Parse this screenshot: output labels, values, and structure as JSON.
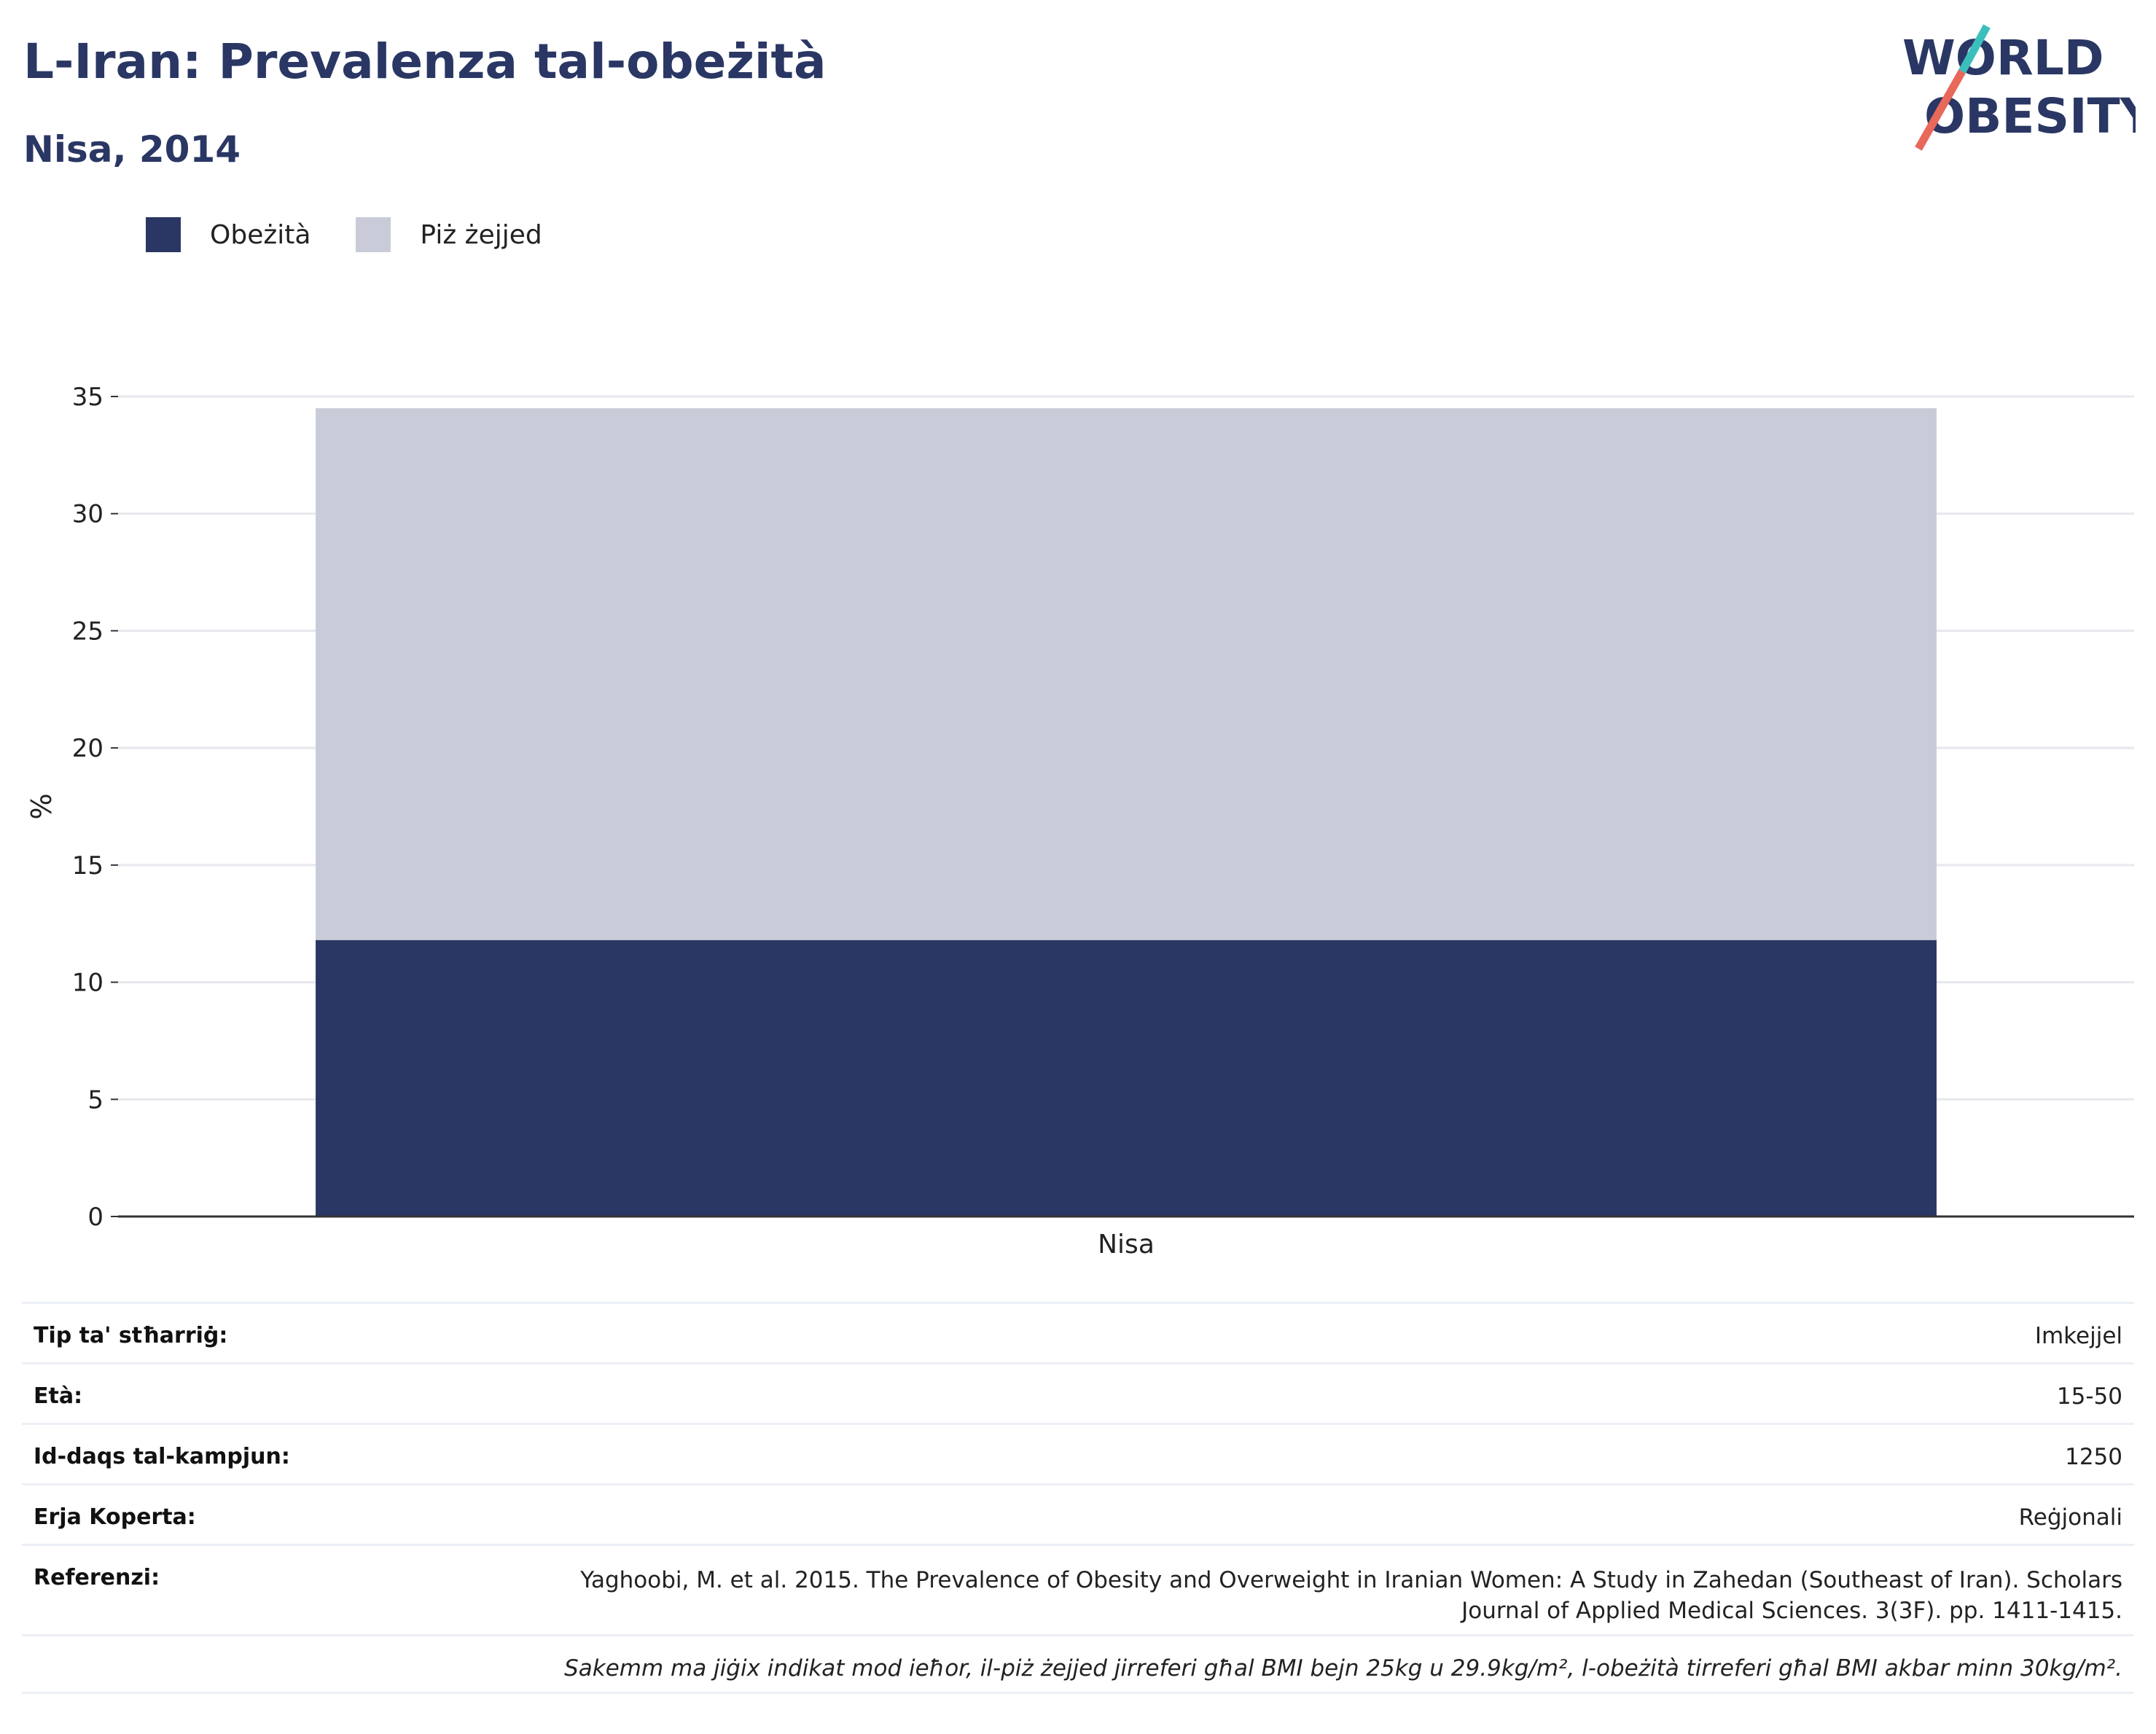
{
  "header": {
    "title": "L-Iran: Prevalenza tal-obeżità",
    "subtitle": "Nisa, 2014"
  },
  "logo": {
    "line1": "WORLD",
    "line2": "OBESITY",
    "colors": {
      "text": "#2a3764",
      "slash_top": "#3bbfbd",
      "slash_bottom": "#e8685a"
    }
  },
  "legend": {
    "items": [
      {
        "label": "Obeżità",
        "color": "#2a3764"
      },
      {
        "label": "Piż żejjed",
        "color": "#c9ccd8"
      }
    ]
  },
  "chart_data": {
    "type": "bar",
    "stacked": true,
    "categories": [
      "Nisa"
    ],
    "series": [
      {
        "name": "Obeżità",
        "values": [
          11.8
        ],
        "color": "#2a3764"
      },
      {
        "name": "Piż żejjed",
        "values": [
          22.7
        ],
        "color": "#c9ccd8"
      }
    ],
    "title": "L-Iran: Prevalenza tal-obeżità",
    "subtitle": "Nisa, 2014",
    "xlabel": "",
    "ylabel": "%",
    "ylim": [
      0,
      35
    ],
    "yticks": [
      0,
      5,
      10,
      15,
      20,
      25,
      30,
      35
    ],
    "grid": true,
    "legend_position": "top-left"
  },
  "info": {
    "rows": [
      {
        "key": "Tip ta' stħarriġ:",
        "value": "Imkejjel"
      },
      {
        "key": "Età:",
        "value": "15-50"
      },
      {
        "key": "Id-daqs tal-kampjun:",
        "value": "1250"
      },
      {
        "key": "Erja Koperta:",
        "value": "Reġjonali"
      },
      {
        "key": "Referenzi:",
        "value": "Yaghoobi, M. et al. 2015. The Prevalence of Obesity and Overweight in Iranian Women: A Study in Zahedan (Southeast of Iran). Scholars Journal of Applied Medical Sciences. 3(3F). pp. 1411-1415."
      }
    ],
    "note": "Sakemm ma jiġix indikat mod ieħor, il-piż żejjed jirreferi għal BMI bejn 25kg u 29.9kg/m², l-obeżità tirreferi għal BMI akbar minn 30kg/m²."
  }
}
